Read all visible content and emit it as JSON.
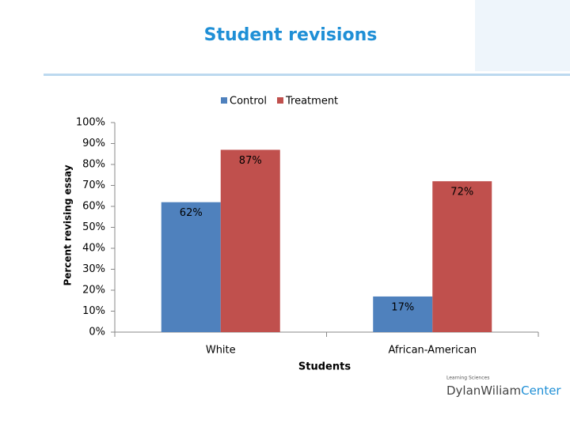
{
  "chart_data": {
    "type": "bar",
    "title": "Student revisions",
    "x_label": "Students",
    "y_label": "Percent revising essay",
    "categories": [
      "White",
      "African-American"
    ],
    "series": [
      {
        "name": "Control",
        "color": "#4f81bd",
        "values": [
          62,
          17
        ],
        "value_labels": [
          "62%",
          "17%"
        ]
      },
      {
        "name": "Treatment",
        "color": "#c0504d",
        "values": [
          87,
          72
        ],
        "value_labels": [
          "87%",
          "72%"
        ]
      }
    ],
    "ylim": [
      0,
      100
    ],
    "yticks": [
      {
        "value": 0,
        "label": "0%"
      },
      {
        "value": 10,
        "label": "10%"
      },
      {
        "value": 20,
        "label": "20%"
      },
      {
        "value": 30,
        "label": "30%"
      },
      {
        "value": 40,
        "label": "40%"
      },
      {
        "value": 50,
        "label": "50%"
      },
      {
        "value": 60,
        "label": "60%"
      },
      {
        "value": 70,
        "label": "70%"
      },
      {
        "value": 80,
        "label": "80%"
      },
      {
        "value": 90,
        "label": "90%"
      },
      {
        "value": 100,
        "label": "100%"
      }
    ],
    "legend": "top"
  },
  "logo": {
    "small": "Learning Sciences",
    "name_part1": "DylanWiliam",
    "name_part2": "Center"
  }
}
